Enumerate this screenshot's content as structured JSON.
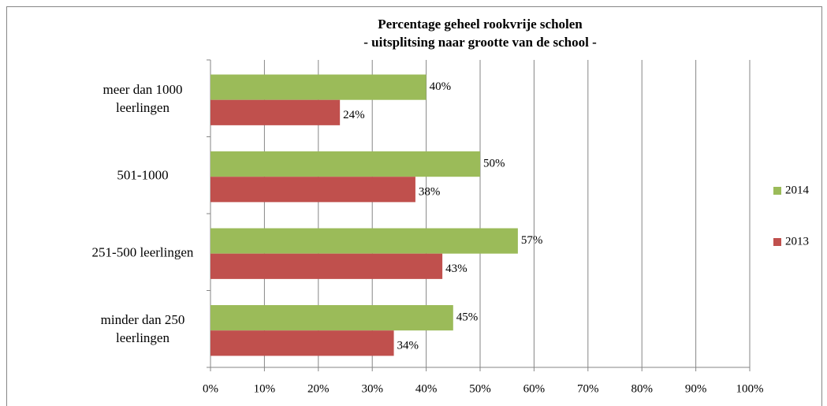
{
  "chart_data": {
    "type": "hbar",
    "title": "Percentage geheel rookvrije scholen",
    "subtitle": "- uitsplitsing naar grootte van de school -",
    "categories": [
      "meer dan 1000 leerlingen",
      "501-1000",
      "251-500 leerlingen",
      "minder dan 250 leerlingen"
    ],
    "series": [
      {
        "name": "2014",
        "color": "#9bbb59",
        "values": [
          40,
          50,
          57,
          45
        ],
        "value_labels": [
          "40%",
          "50%",
          "57%",
          "45%"
        ]
      },
      {
        "name": "2013",
        "color": "#c0504d",
        "values": [
          24,
          38,
          43,
          34
        ],
        "value_labels": [
          "24%",
          "38%",
          "43%",
          "34%"
        ]
      }
    ],
    "xlim": [
      0,
      100
    ],
    "xticks": [
      {
        "value": 0,
        "label": "0%"
      },
      {
        "value": 10,
        "label": "10%"
      },
      {
        "value": 20,
        "label": "20%"
      },
      {
        "value": 30,
        "label": "30%"
      },
      {
        "value": 40,
        "label": "40%"
      },
      {
        "value": 50,
        "label": "50%"
      },
      {
        "value": 60,
        "label": "60%"
      },
      {
        "value": 70,
        "label": "70%"
      },
      {
        "value": 80,
        "label": "80%"
      },
      {
        "value": 90,
        "label": "90%"
      },
      {
        "value": 100,
        "label": "100%"
      }
    ],
    "grid": true,
    "legend": "right"
  }
}
